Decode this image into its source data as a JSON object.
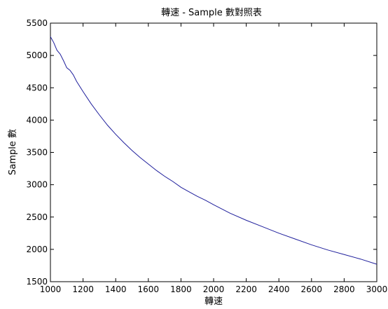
{
  "chart_data": {
    "type": "line",
    "title": "轉速 - Sample 數對照表",
    "xlabel": "轉速",
    "ylabel": "Sample 數",
    "xlim": [
      1000,
      3000
    ],
    "ylim": [
      1500,
      5500
    ],
    "xticks": [
      1000,
      1200,
      1400,
      1600,
      1800,
      2000,
      2200,
      2400,
      2600,
      2800,
      3000
    ],
    "yticks": [
      1500,
      2000,
      2500,
      3000,
      3500,
      4000,
      4500,
      5000,
      5500
    ],
    "grid": false,
    "legend": "none",
    "series": [
      {
        "color": "#1f1f9c",
        "x": [
          1000,
          1020,
          1040,
          1060,
          1080,
          1100,
          1120,
          1140,
          1160,
          1200,
          1250,
          1300,
          1350,
          1400,
          1450,
          1500,
          1550,
          1600,
          1650,
          1700,
          1750,
          1800,
          1850,
          1900,
          1950,
          2000,
          2100,
          2200,
          2300,
          2400,
          2500,
          2600,
          2700,
          2800,
          2900,
          3000
        ],
        "y": [
          5290,
          5200,
          5080,
          5020,
          4920,
          4810,
          4770,
          4700,
          4600,
          4440,
          4250,
          4080,
          3920,
          3780,
          3650,
          3530,
          3420,
          3320,
          3220,
          3130,
          3050,
          2960,
          2890,
          2820,
          2760,
          2690,
          2560,
          2450,
          2350,
          2250,
          2160,
          2070,
          1990,
          1920,
          1850,
          1770
        ]
      }
    ]
  }
}
